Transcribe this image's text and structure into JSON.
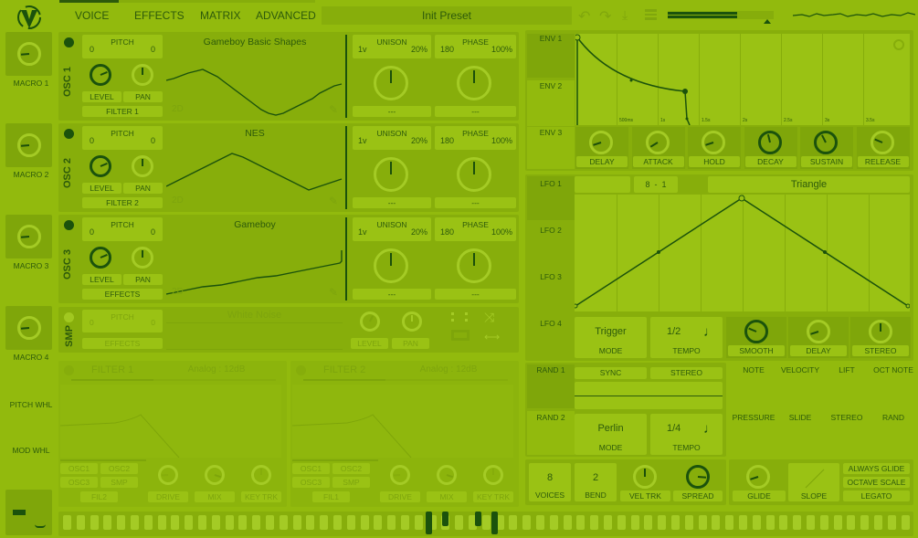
{
  "header": {
    "tabs": [
      "VOICE",
      "EFFECTS",
      "MATRIX",
      "ADVANCED"
    ],
    "active_tab": "VOICE",
    "preset": "Init Preset"
  },
  "macros": [
    {
      "label": "MACRO 1",
      "value": 0.15
    },
    {
      "label": "MACRO 2",
      "value": 0.15
    },
    {
      "label": "MACRO 3",
      "value": 0.15
    },
    {
      "label": "MACRO 4",
      "value": 0.15
    }
  ],
  "wheels": {
    "pitch": "PITCH WHL",
    "mod": "MOD WHL"
  },
  "oscillators": [
    {
      "name": "OSC 1",
      "pitch_left": "0",
      "pitch_label": "PITCH",
      "pitch_right": "0",
      "wavetable": "Gameboy Basic Shapes",
      "level": "LEVEL",
      "pan": "PAN",
      "dest": "FILTER 1",
      "mode": "2D",
      "unison_voices": "1v",
      "unison_label": "UNISON",
      "unison_detune": "20%",
      "phase_value": "180",
      "phase_label": "PHASE",
      "phase_rand": "100%",
      "sel1": "---",
      "sel2": "---"
    },
    {
      "name": "OSC 2",
      "pitch_left": "0",
      "pitch_label": "PITCH",
      "pitch_right": "0",
      "wavetable": "NES",
      "level": "LEVEL",
      "pan": "PAN",
      "dest": "FILTER 2",
      "mode": "2D",
      "unison_voices": "1v",
      "unison_label": "UNISON",
      "unison_detune": "20%",
      "phase_value": "180",
      "phase_label": "PHASE",
      "phase_rand": "100%",
      "sel1": "---",
      "sel2": "---"
    },
    {
      "name": "OSC 3",
      "pitch_left": "0",
      "pitch_label": "PITCH",
      "pitch_right": "0",
      "wavetable": "Gameboy",
      "level": "LEVEL",
      "pan": "PAN",
      "dest": "EFFECTS",
      "mode": "2D",
      "unison_voices": "1v",
      "unison_label": "UNISON",
      "unison_detune": "20%",
      "phase_value": "180",
      "phase_label": "PHASE",
      "phase_rand": "100%",
      "sel1": "---",
      "sel2": "---"
    }
  ],
  "sampler": {
    "name": "SMP",
    "pitch_left": "0",
    "pitch_label": "PITCH",
    "pitch_right": "0",
    "sample": "White Noise",
    "dest": "EFFECTS",
    "level": "LEVEL",
    "pan": "PAN"
  },
  "filters": [
    {
      "name": "FILTER 1",
      "model": "Analog",
      "type": "12dB",
      "routes": [
        "OSC1",
        "OSC2",
        "OSC3",
        "SMP",
        "FIL2"
      ],
      "knobs": [
        "DRIVE",
        "MIX",
        "KEY TRK"
      ]
    },
    {
      "name": "FILTER 2",
      "model": "Analog",
      "type": "12dB",
      "routes": [
        "OSC1",
        "OSC2",
        "OSC3",
        "SMP",
        "FIL1"
      ],
      "knobs": [
        "DRIVE",
        "MIX",
        "KEY TRK"
      ]
    }
  ],
  "envelopes": {
    "tabs": [
      "ENV 1",
      "ENV 2",
      "ENV 3"
    ],
    "active": "ENV 1",
    "time_labels": [
      "500ms",
      "1s",
      "1.5s",
      "2s",
      "2.5s",
      "3s",
      "3.5s"
    ],
    "knobs": [
      {
        "label": "DELAY",
        "value": 0.1
      },
      {
        "label": "ATTACK",
        "value": 0.05
      },
      {
        "label": "HOLD",
        "value": 0.1
      },
      {
        "label": "DECAY",
        "value": 0.45
      },
      {
        "label": "SUSTAIN",
        "value": 0.4
      },
      {
        "label": "RELEASE",
        "value": 0.25
      }
    ]
  },
  "lfos": {
    "tabs": [
      "LFO 1",
      "LFO 2",
      "LFO 3",
      "LFO 4"
    ],
    "active": "LFO 1",
    "grid_x": "8",
    "grid_sep": "-",
    "grid_y": "1",
    "shape": "Triangle",
    "mode_value": "Trigger",
    "mode_label": "MODE",
    "tempo_value": "1/2",
    "tempo_label": "TEMPO",
    "knobs": [
      {
        "label": "SMOOTH",
        "value": 0.25
      },
      {
        "label": "DELAY",
        "value": 0.1
      },
      {
        "label": "STEREO",
        "value": 0.5
      }
    ]
  },
  "randoms": {
    "tabs": [
      "RAND 1",
      "RAND 2"
    ],
    "active": "RAND 1",
    "sync": "SYNC",
    "stereo": "STEREO",
    "mode_value": "Perlin",
    "mode_label": "MODE",
    "tempo_value": "1/4",
    "tempo_label": "TEMPO"
  },
  "mod_sources": [
    "NOTE",
    "VELOCITY",
    "LIFT",
    "OCT NOTE",
    "PRESSURE",
    "SLIDE",
    "STEREO",
    "RAND"
  ],
  "voice": {
    "voices": "8",
    "voices_label": "VOICES",
    "bend": "2",
    "bend_label": "BEND",
    "vel_trk": "VEL TRK",
    "spread": "SPREAD"
  },
  "glide": {
    "glide": "GLIDE",
    "slope": "SLOPE",
    "always_glide": "ALWAYS GLIDE",
    "octave_scale": "OCTAVE SCALE",
    "legato": "LEGATO"
  },
  "colors": {
    "background": "#92ba0d",
    "accent": "#1b520c"
  }
}
